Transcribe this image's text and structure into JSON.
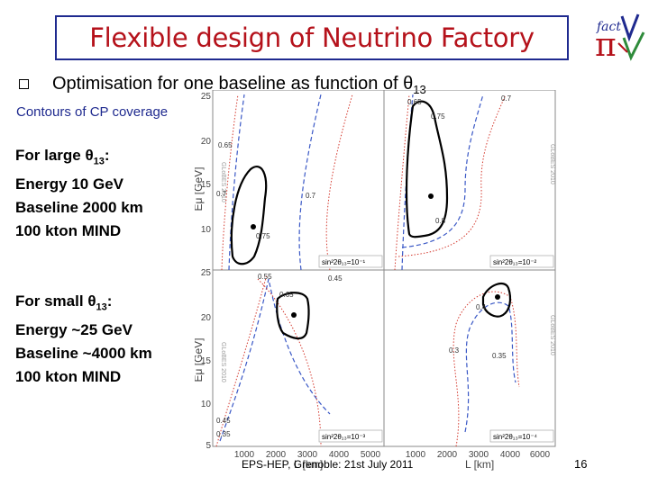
{
  "title": "Flexible design of Neutrino Factory",
  "logo": {
    "text": "fact",
    "glyph": "π",
    "colors": {
      "blue": "#1f2a8f",
      "red": "#b5121b",
      "green": "#2e8b3a"
    }
  },
  "subtitle": {
    "text": "Optimisation for one baseline as function of ",
    "theta": "θ",
    "sub": "13"
  },
  "contours_label": "Contours of CP coverage",
  "large_theta": {
    "heading": {
      "prefix": "For large ",
      "theta": "θ",
      "sub": "13",
      "suffix": ":"
    },
    "energy": "Energy 10 GeV",
    "baseline": "Baseline 2000 km",
    "detector": "100 kton MIND"
  },
  "small_theta": {
    "heading": {
      "prefix": "For small ",
      "theta": "θ",
      "sub": "13",
      "suffix": ":"
    },
    "energy": "Energy ~25 GeV",
    "baseline": "Baseline ~4000 km",
    "detector": "100 kton MIND"
  },
  "plot": {
    "y_axis_label": "Eμ [GeV]",
    "x_axis_label": "L [km]",
    "y_ticks": [
      "25",
      "20",
      "15",
      "10",
      "5"
    ],
    "x_ticks": [
      "1000",
      "2000",
      "3000",
      "4000",
      "5000",
      "6000"
    ],
    "watermark": "GLoBES 2010",
    "panels": [
      {
        "name": "top-left",
        "legend": "sin²2θ₁₃=10⁻¹",
        "labels": [
          "0.65",
          "0.7",
          "0.75",
          "0.7"
        ]
      },
      {
        "name": "top-right",
        "legend": "sin²2θ₁₃=10⁻²",
        "labels": [
          "0.65",
          "0.75",
          "0.7",
          "0.8"
        ]
      },
      {
        "name": "bottom-left",
        "legend": "sin²2θ₁₃=10⁻³",
        "labels": [
          "0.55",
          "0.45",
          "0.65",
          "0.45",
          "0.35"
        ]
      },
      {
        "name": "bottom-right",
        "legend": "sin²2θ₁₃=10⁻⁴",
        "labels": [
          "0.4",
          "0.3",
          "0.35"
        ]
      }
    ]
  },
  "footer": "EPS-HEP, Grenoble: 21st July 2011",
  "page_number": "16"
}
